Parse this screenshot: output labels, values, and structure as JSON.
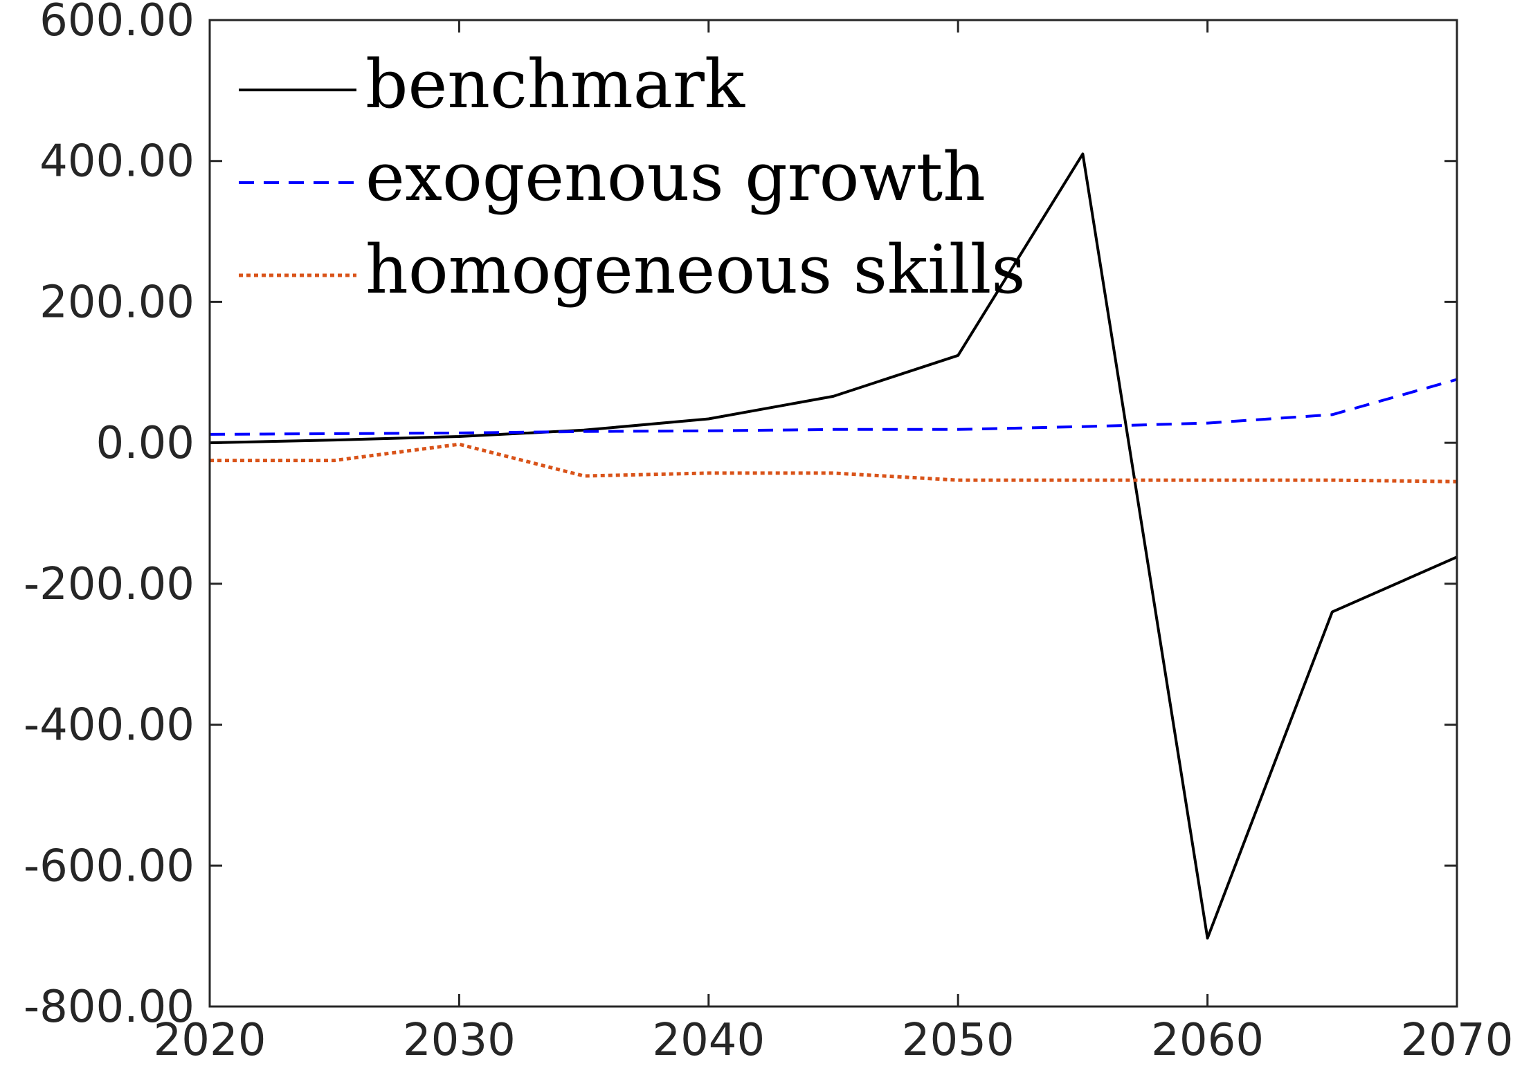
{
  "chart_data": {
    "type": "line",
    "title": "",
    "xlabel": "",
    "ylabel": "",
    "xlim": [
      2020,
      2070
    ],
    "ylim": [
      -800,
      600
    ],
    "grid": false,
    "legend_position": "top-left",
    "x_ticks": [
      "2020",
      "2030",
      "2040",
      "2050",
      "2060",
      "2070"
    ],
    "y_ticks": [
      "600.00",
      "400.00",
      "200.00",
      "0.00",
      "-200.00",
      "-400.00",
      "-600.00",
      "-800.00"
    ],
    "x": [
      2020,
      2025,
      2030,
      2035,
      2040,
      2045,
      2050,
      2055,
      2060,
      2065,
      2070
    ],
    "series": [
      {
        "name": "benchmark",
        "color": "#000000",
        "style": "solid",
        "values": [
          0,
          4,
          9,
          18,
          34,
          66,
          124,
          410,
          -703,
          -240,
          -162
        ]
      },
      {
        "name": "exogenous growth",
        "color": "#0000ff",
        "style": "dashed",
        "values": [
          12,
          13,
          14,
          16,
          17,
          19,
          19,
          23,
          28,
          40,
          90
        ]
      },
      {
        "name": "homogeneous skills",
        "color": "#d95319",
        "style": "dotted",
        "values": [
          -25,
          -25,
          -2,
          -47,
          -43,
          -43,
          -53,
          -53,
          -53,
          -53,
          -55
        ]
      }
    ]
  }
}
